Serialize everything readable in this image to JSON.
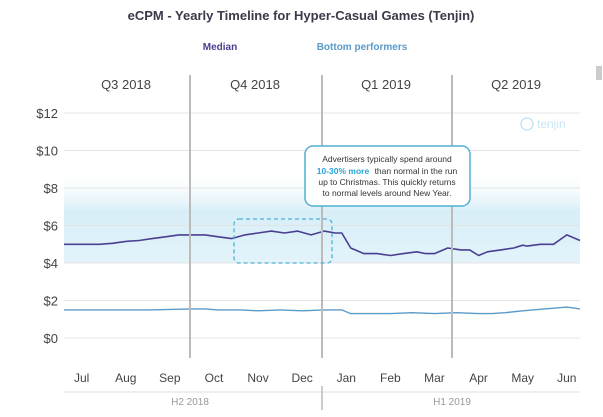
{
  "chart_data": {
    "type": "line",
    "title": "eCPM - Yearly Timeline for Hyper-Casual Games (Tenjin)",
    "watermark": "tenjin",
    "quarters": [
      "Q3 2018",
      "Q4 2018",
      "Q1 2019",
      "Q2 2019"
    ],
    "halves": [
      "H2 2018",
      "H1 2019"
    ],
    "categories": [
      "Jul",
      "Aug",
      "Sep",
      "Oct",
      "Nov",
      "Dec",
      "Jan",
      "Feb",
      "Mar",
      "Apr",
      "May",
      "Jun"
    ],
    "y_ticks": [
      "$12",
      "$10",
      "$8",
      "$6",
      "$4",
      "$2",
      "$0"
    ],
    "y_tick_values": [
      12,
      10,
      8,
      6,
      4,
      2,
      0
    ],
    "ylim": [
      0,
      12.5
    ],
    "xlim": [
      6.6,
      18.3
    ],
    "shaded_band": [
      4,
      9
    ],
    "series": [
      {
        "name": "Median",
        "color": "#4a3f8f",
        "x": [
          6.6,
          7.0,
          7.4,
          7.7,
          8.0,
          8.3,
          8.6,
          8.9,
          9.2,
          9.5,
          9.8,
          10.1,
          10.4,
          10.7,
          11.0,
          11.3,
          11.6,
          11.9,
          12.2,
          12.5,
          12.75,
          12.9,
          13.1,
          13.4,
          13.7,
          14.0,
          14.3,
          14.6,
          14.8,
          15.0,
          15.3,
          15.6,
          15.8,
          16.0,
          16.2,
          16.5,
          16.8,
          17.0,
          17.1,
          17.4,
          17.7,
          18.0,
          18.3
        ],
        "values": [
          5.0,
          5.0,
          5.0,
          5.05,
          5.15,
          5.2,
          5.3,
          5.4,
          5.5,
          5.5,
          5.5,
          5.4,
          5.3,
          5.5,
          5.6,
          5.7,
          5.6,
          5.7,
          5.5,
          5.7,
          5.6,
          5.6,
          4.8,
          4.5,
          4.5,
          4.4,
          4.5,
          4.6,
          4.5,
          4.5,
          4.8,
          4.7,
          4.7,
          4.4,
          4.6,
          4.7,
          4.8,
          4.95,
          4.9,
          5.0,
          5.0,
          5.5,
          5.2
        ]
      },
      {
        "name": "Bottom performers",
        "color": "#5a9ac9",
        "x": [
          6.6,
          7.5,
          8.5,
          9.5,
          9.8,
          10.1,
          10.6,
          11.0,
          11.5,
          12.0,
          12.5,
          12.9,
          13.1,
          13.6,
          14.0,
          14.5,
          15.0,
          15.5,
          16.0,
          16.3,
          16.6,
          17.0,
          17.5,
          18.0,
          18.3
        ],
        "values": [
          1.5,
          1.5,
          1.5,
          1.55,
          1.55,
          1.5,
          1.5,
          1.45,
          1.5,
          1.45,
          1.5,
          1.5,
          1.3,
          1.3,
          1.3,
          1.35,
          1.3,
          1.35,
          1.3,
          1.3,
          1.35,
          1.45,
          1.55,
          1.65,
          1.55
        ]
      }
    ],
    "annotation": {
      "line1": "Advertisers typically spend around",
      "highlight": "10-30% more",
      "line2_rest": "than normal in the run",
      "line3": "up to Christmas. This quickly returns",
      "line4": "to normal levels around New Year."
    },
    "grid": true,
    "legend_position": "top"
  }
}
